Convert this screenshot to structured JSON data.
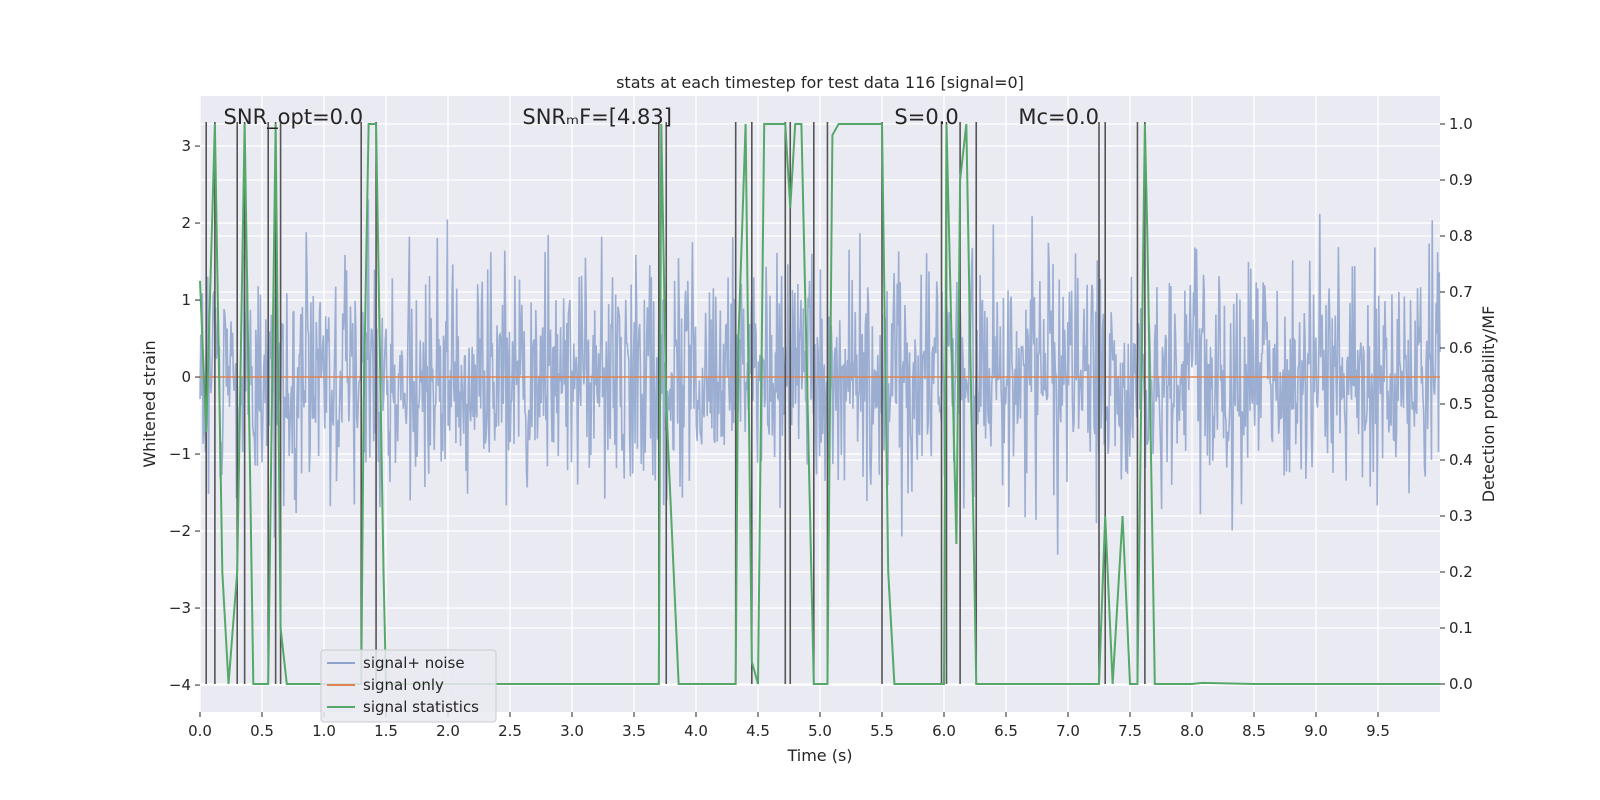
{
  "chart_data": {
    "type": "line",
    "title": "stats at each timestep for test data 116 [signal=0]",
    "xlabel": "Time (s)",
    "ylabel": "Whitened strain",
    "y2label": "Detection probability/MF",
    "xlim": [
      0,
      10
    ],
    "ylim": [
      -4.35,
      3.65
    ],
    "y2lim": [
      -0.05,
      1.05
    ],
    "xticks": [
      0.0,
      0.5,
      1.0,
      1.5,
      2.0,
      2.5,
      3.0,
      3.5,
      4.0,
      4.5,
      5.0,
      5.5,
      6.0,
      6.5,
      7.0,
      7.5,
      8.0,
      8.5,
      9.0,
      9.5
    ],
    "xtick_labels": [
      "0.0",
      "0.5",
      "1.0",
      "1.5",
      "2.0",
      "2.5",
      "3.0",
      "3.5",
      "4.0",
      "4.5",
      "5.0",
      "5.5",
      "6.0",
      "6.5",
      "7.0",
      "7.5",
      "8.0",
      "8.5",
      "9.0",
      "9.5"
    ],
    "yticks": [
      -4,
      -3,
      -2,
      -1,
      0,
      1,
      2,
      3
    ],
    "ytick_labels": [
      "−4",
      "−3",
      "−2",
      "−1",
      "0",
      "1",
      "2",
      "3"
    ],
    "y2ticks": [
      0.0,
      0.1,
      0.2,
      0.3,
      0.4,
      0.5,
      0.6,
      0.7,
      0.8,
      0.9,
      1.0
    ],
    "y2tick_labels": [
      "0.0",
      "0.1",
      "0.2",
      "0.3",
      "0.4",
      "0.5",
      "0.6",
      "0.7",
      "0.8",
      "0.9",
      "1.0"
    ],
    "grid": true,
    "legend_position": "lower-left",
    "annotations": [
      {
        "text": "SNR_opt=0.0",
        "x": 0.19
      },
      {
        "text": "SNRₘF=[4.83]",
        "x": 2.6
      },
      {
        "text": "S=0.0",
        "x": 5.6
      },
      {
        "text": "Mᴄ=0.0",
        "x": 6.6
      }
    ],
    "colors": {
      "noise": "#8da3cc",
      "signal": "#dd8452",
      "stats": "#55a868",
      "vlines": "#555555",
      "background": "#eaeaf2"
    },
    "series": [
      {
        "name": "signal+ noise",
        "axis": "left",
        "amplitude_sigma": 0.75,
        "seed": 116,
        "n_points": 1600
      },
      {
        "name": "signal only",
        "axis": "left",
        "x": [
          0,
          10
        ],
        "y": [
          0,
          0
        ]
      },
      {
        "name": "signal statistics",
        "axis": "right",
        "x": [
          0.0,
          0.05,
          0.12,
          0.18,
          0.23,
          0.3,
          0.36,
          0.43,
          0.5,
          0.55,
          0.61,
          0.65,
          0.7,
          1.0,
          1.3,
          1.32,
          1.36,
          1.42,
          1.48,
          1.5,
          2.0,
          3.0,
          3.5,
          3.7,
          3.72,
          3.76,
          3.86,
          4.0,
          4.32,
          4.34,
          4.4,
          4.45,
          4.5,
          4.55,
          4.6,
          4.72,
          4.76,
          4.8,
          4.85,
          4.95,
          5.02,
          5.06,
          5.1,
          5.15,
          5.2,
          5.5,
          5.55,
          5.6,
          6.0,
          6.02,
          6.1,
          6.13,
          6.18,
          6.26,
          6.3,
          6.5,
          7.0,
          7.25,
          7.3,
          7.36,
          7.44,
          7.5,
          7.56,
          7.62,
          7.64,
          7.7,
          8.0,
          8.08,
          8.5,
          9.0,
          9.5,
          10.0
        ],
        "y": [
          0.72,
          0.45,
          1.0,
          0.2,
          0.0,
          0.2,
          1.0,
          0.0,
          0.0,
          0.0,
          1.0,
          0.1,
          0.0,
          0.0,
          0.0,
          0.5,
          1.0,
          1.0,
          0.2,
          0.0,
          0.0,
          0.0,
          0.0,
          0.0,
          1.0,
          0.5,
          0.0,
          0.0,
          0.0,
          0.6,
          1.0,
          0.04,
          0.0,
          1.0,
          1.0,
          1.0,
          0.85,
          1.0,
          1.0,
          0.0,
          0.0,
          0.0,
          0.98,
          1.0,
          1.0,
          1.0,
          0.2,
          0.0,
          0.0,
          1.0,
          0.25,
          0.9,
          1.0,
          0.0,
          0.0,
          0.0,
          0.0,
          0.0,
          0.3,
          0.0,
          0.3,
          0.0,
          0.0,
          1.0,
          0.8,
          0.0,
          0.0,
          0.002,
          0.0,
          0.0,
          0.0,
          0.0
        ]
      }
    ],
    "vertical_lines_x": [
      0.05,
      0.12,
      0.3,
      0.36,
      0.55,
      0.61,
      0.65,
      1.3,
      1.42,
      3.7,
      3.76,
      4.32,
      4.45,
      4.72,
      4.76,
      4.95,
      5.06,
      5.5,
      5.98,
      6.02,
      6.13,
      6.26,
      7.25,
      7.3,
      7.56,
      7.62
    ]
  }
}
